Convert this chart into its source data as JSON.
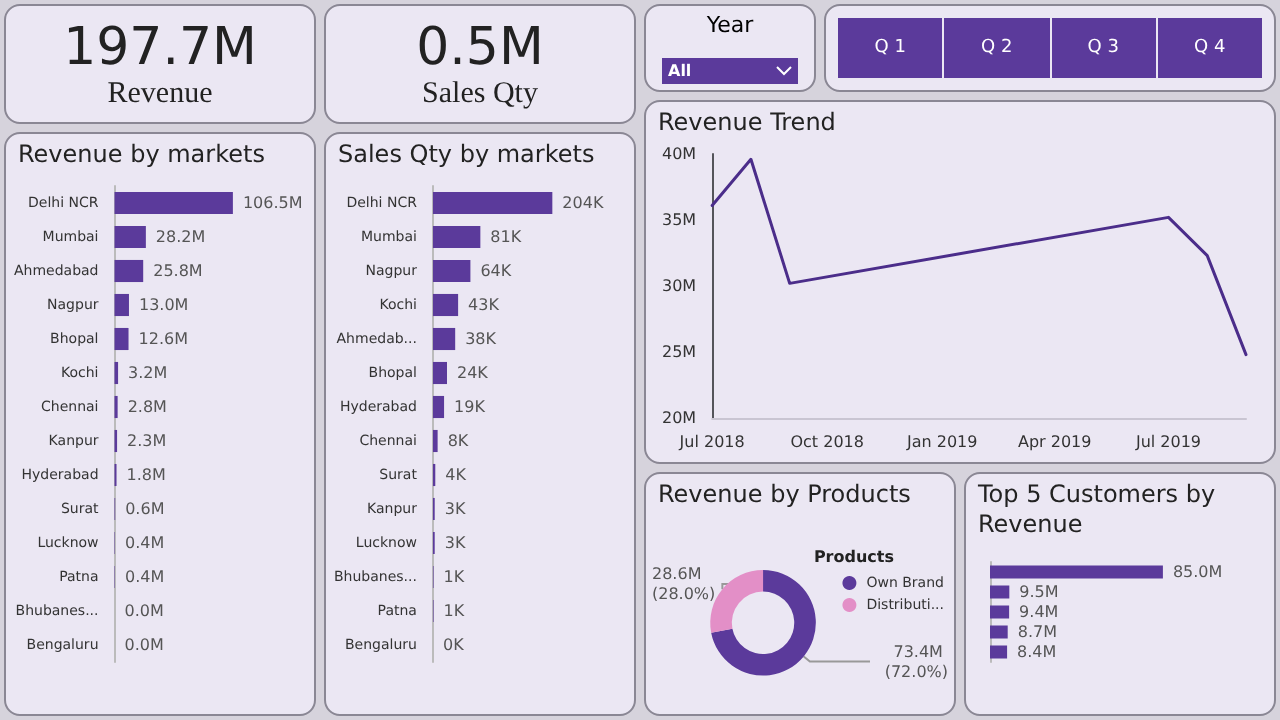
{
  "chart_data": [
    {
      "type": "other",
      "title": "Revenue",
      "annotations": [
        "197.7M"
      ]
    },
    {
      "type": "other",
      "title": "Sales Qty",
      "annotations": [
        "0.5M"
      ]
    },
    {
      "type": "other",
      "title": "Year",
      "annotations": [
        "All"
      ]
    },
    {
      "type": "other",
      "annotations": [
        "Q 1",
        "Q 2",
        "Q 3",
        "Q 4"
      ]
    },
    {
      "type": "bar",
      "orientation": "horizontal",
      "title": "Revenue by markets",
      "categories": [
        "Delhi NCR",
        "Mumbai",
        "Ahmedabad",
        "Nagpur",
        "Bhopal",
        "Kochi",
        "Chennai",
        "Kanpur",
        "Hyderabad",
        "Surat",
        "Lucknow",
        "Patna",
        "Bhubanes...",
        "Bengaluru"
      ],
      "color": "#5b3a9b",
      "values": [
        106.5,
        28.2,
        25.8,
        13.0,
        12.6,
        3.2,
        2.8,
        2.3,
        1.8,
        0.6,
        0.4,
        0.4,
        0.0,
        0.0
      ],
      "value_labels": [
        "106.5M",
        "28.2M",
        "25.8M",
        "13.0M",
        "12.6M",
        "3.2M",
        "2.8M",
        "2.3M",
        "1.8M",
        "0.6M",
        "0.4M",
        "0.4M",
        "0.0M",
        "0.0M"
      ]
    },
    {
      "type": "bar",
      "orientation": "horizontal",
      "title": "Sales Qty by markets",
      "categories": [
        "Delhi NCR",
        "Mumbai",
        "Nagpur",
        "Kochi",
        "Ahmedab...",
        "Bhopal",
        "Hyderabad",
        "Chennai",
        "Surat",
        "Kanpur",
        "Lucknow",
        "Bhubanes...",
        "Patna",
        "Bengaluru"
      ],
      "color": "#5b3a9b",
      "values": [
        204,
        81,
        64,
        43,
        38,
        24,
        19,
        8,
        4,
        3,
        3,
        1,
        1,
        0
      ],
      "value_labels": [
        "204K",
        "81K",
        "64K",
        "43K",
        "38K",
        "24K",
        "19K",
        "8K",
        "4K",
        "3K",
        "3K",
        "1K",
        "1K",
        "0K"
      ]
    },
    {
      "type": "line",
      "title": "Revenue Trend",
      "x": [
        "2018-07",
        "2018-08",
        "2018-09",
        "2019-07",
        "2019-08",
        "2019-09"
      ],
      "color": "#4b2d8a",
      "values": [
        36.1,
        39.6,
        30.2,
        35.2,
        32.3,
        24.8
      ],
      "xlim": [
        "2018-07",
        "2019-09"
      ],
      "xticks": [
        {
          "value": "2018-07",
          "label": "Jul 2018"
        },
        {
          "value": "2018-10",
          "label": "Oct 2018"
        },
        {
          "value": "2019-01",
          "label": "Jan 2019"
        },
        {
          "value": "2019-04",
          "label": "Apr 2019"
        },
        {
          "value": "2019-07",
          "label": "Jul 2019"
        }
      ],
      "ylim": [
        20,
        40
      ],
      "yticks": [
        {
          "value": 20,
          "label": "20M"
        },
        {
          "value": 25,
          "label": "25M"
        },
        {
          "value": 30,
          "label": "30M"
        },
        {
          "value": 35,
          "label": "35M"
        },
        {
          "value": 40,
          "label": "40M"
        }
      ],
      "marker": "none",
      "line_style": "solid"
    },
    {
      "type": "donut",
      "title": "Revenue by Products",
      "legend_title": "Products",
      "legend": "right",
      "categories": [
        "Own Brand",
        "Distributi..."
      ],
      "values": [
        72.0,
        28.0
      ],
      "colors": [
        "#5b3a9b",
        "#e38fc7"
      ],
      "value_labels": [
        "73.4M (72.0%)",
        "28.6M (28.0%)"
      ]
    },
    {
      "type": "bar",
      "orientation": "horizontal",
      "title": "Top 5 Customers by Revenue",
      "categories": [
        null,
        null,
        null,
        null,
        null
      ],
      "color": "#5b3a9b",
      "values": [
        85.0,
        9.5,
        9.4,
        8.7,
        8.4
      ],
      "value_labels": [
        "85.0M",
        "9.5M",
        "9.4M",
        "8.7M",
        "8.4M"
      ]
    }
  ]
}
